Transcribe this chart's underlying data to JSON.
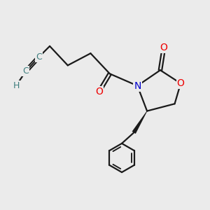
{
  "bg_color": "#ebebeb",
  "atom_colors": {
    "C": "#3d7d7d",
    "N": "#0000cc",
    "O": "#ee0000",
    "H": "#3d7d7d"
  },
  "bond_color": "#1a1a1a",
  "bond_width": 1.6,
  "font_size_atom": 10,
  "font_size_H": 9
}
